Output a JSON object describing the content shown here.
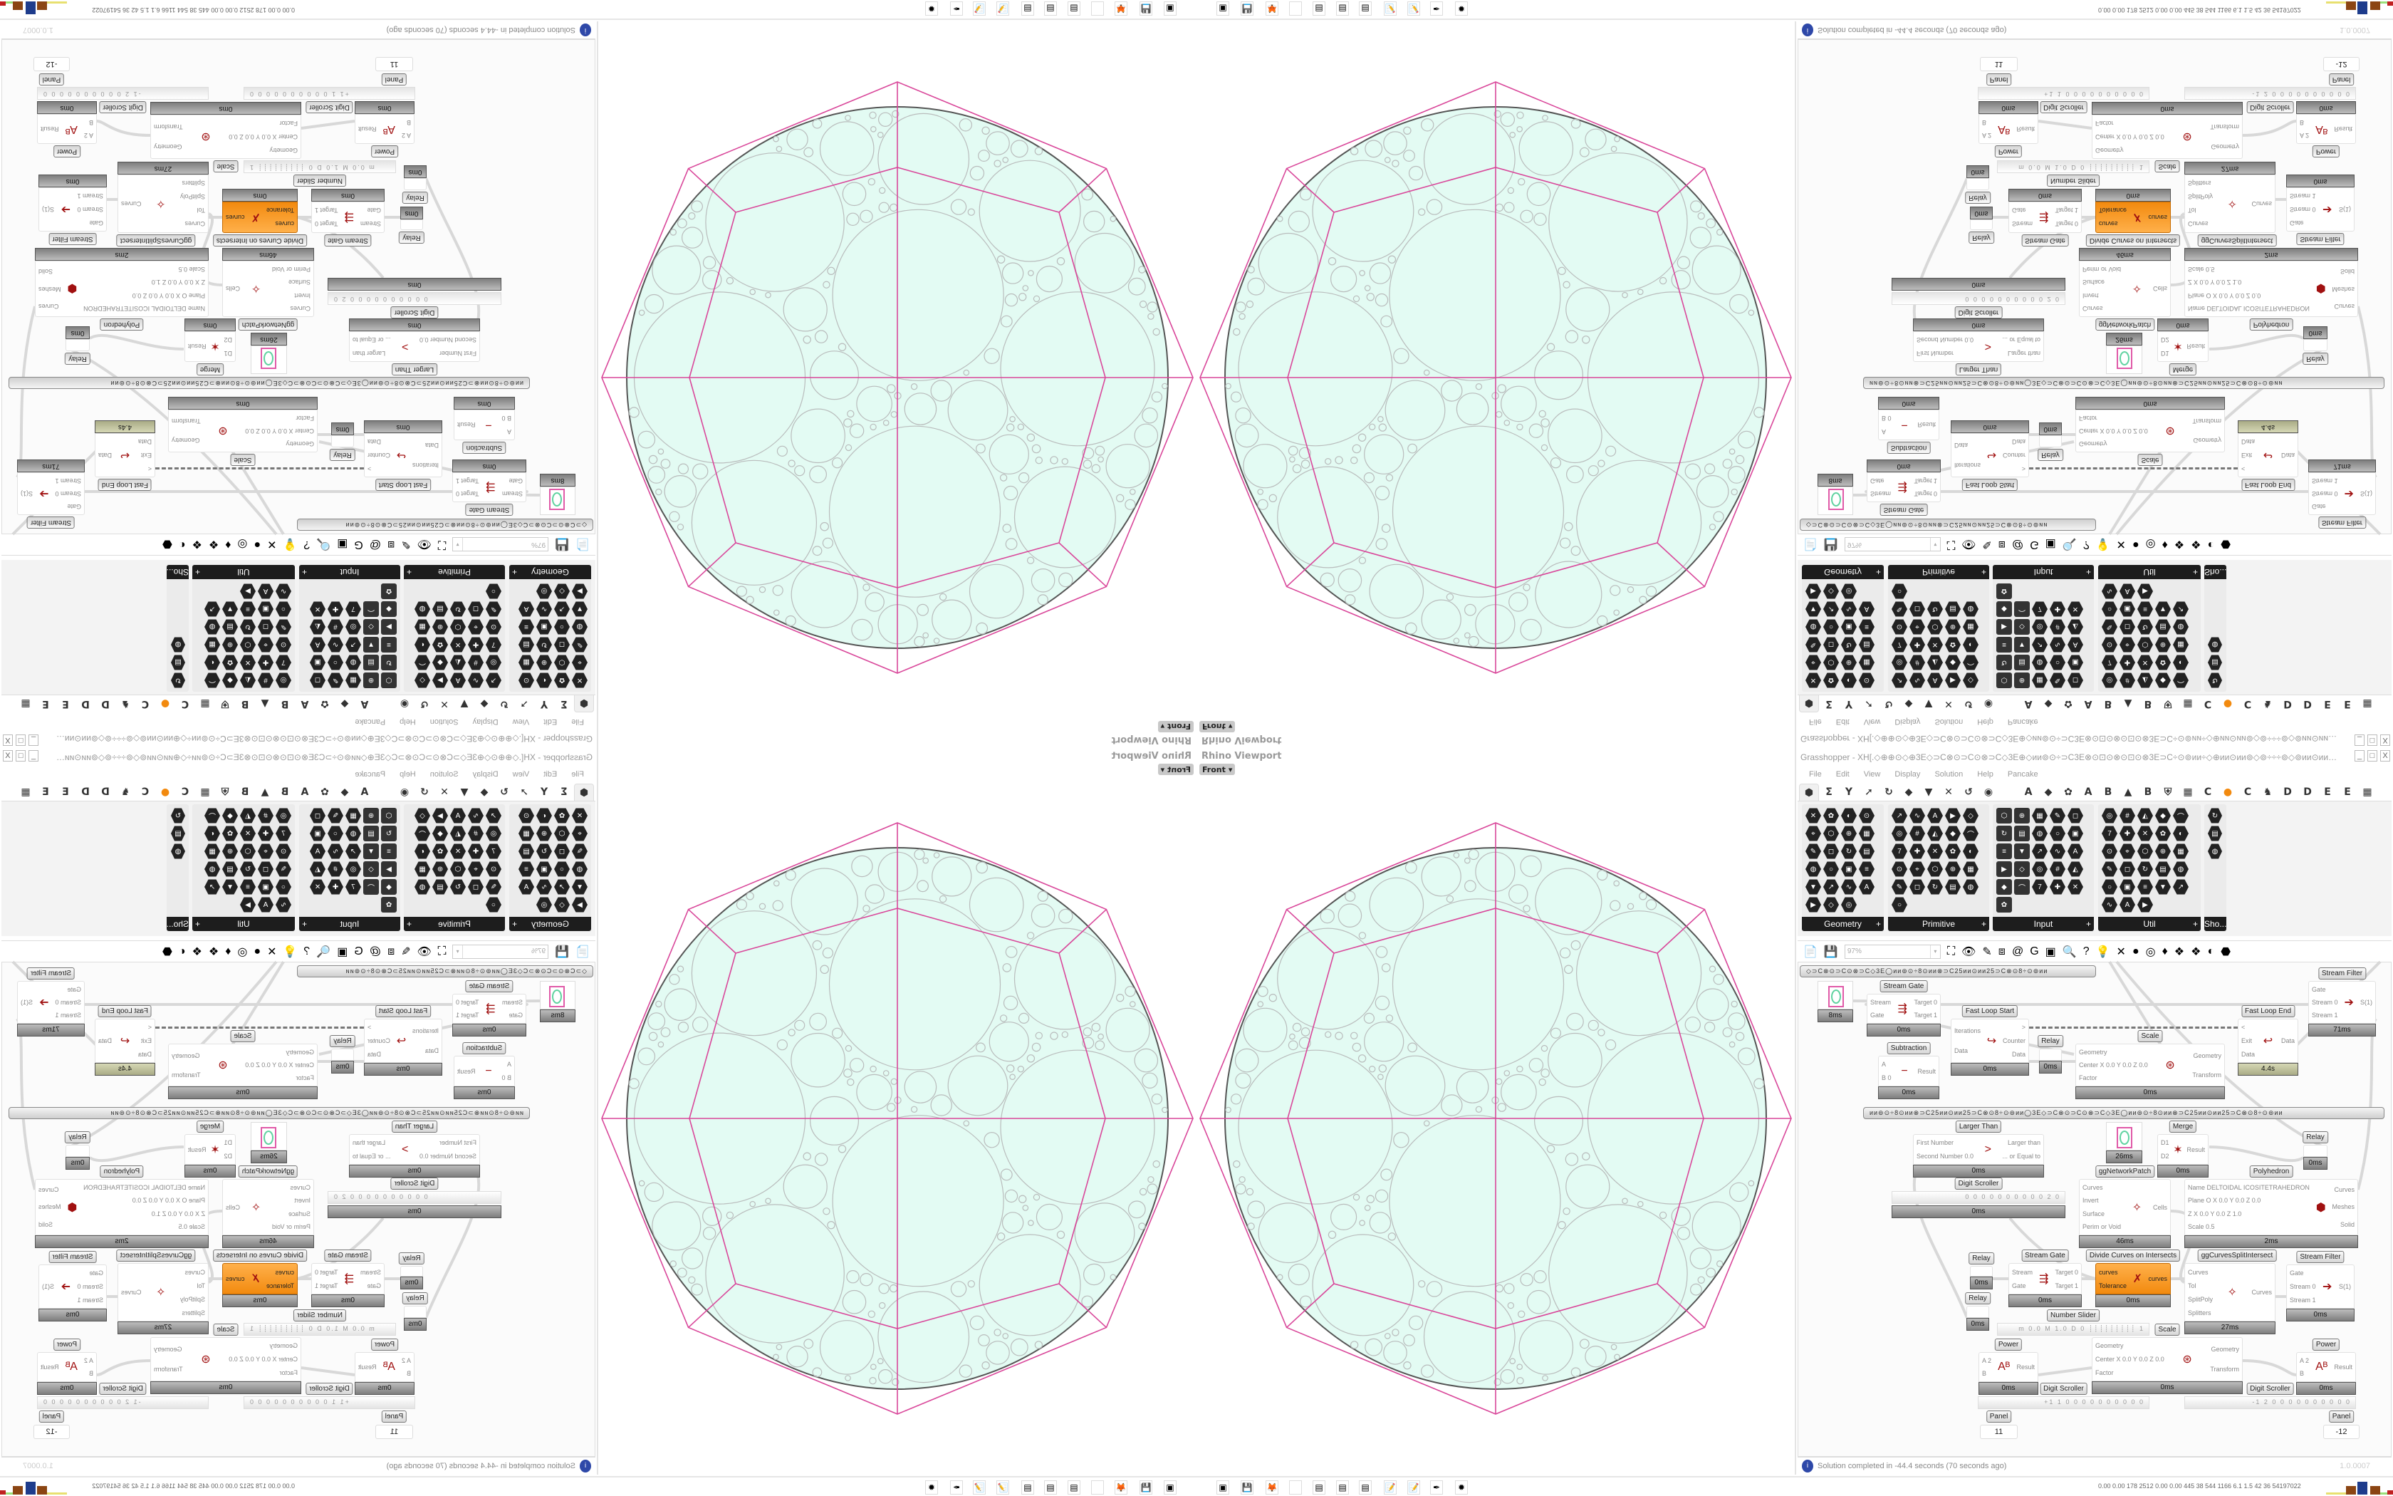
{
  "viewport": {
    "title": "Rhino Viewport",
    "view": "Front",
    "colors": {
      "fill": "#e3fbf3",
      "circle_stroke": "#b9bcbc",
      "outline": "#555555",
      "polygon_lines": "#d9479a"
    }
  },
  "window": {
    "title": "Grasshopper - XH[.◇⊕⊕⊙◇⊕3E◇⊃C⊗⊙⊃C⊙⊗⊃C◇3E⊕◇ᴎᴎ⊚⊙÷⊃C3E⊗⊙⊡⊙⊗⊙⊡⊙⊗3E⊃C÷⊙⊚ᴎᴎ÷◇⊕ᴎᴎ⊙ᴎᴎ⊚◇⊚÷÷÷⊚◇⊚ᴎᴎ⊙ᴎᴎ⊕◇ᴎᴎ⊚⊙÷⊃C3E⊗⊙⊡⊙⊗⊙⊡⊙…",
    "minimize": "_",
    "maximize": "□",
    "close": "X"
  },
  "menu": [
    "File",
    "Edit",
    "View",
    "Display",
    "Solution",
    "Help",
    "Pancake"
  ],
  "tabs": [
    "⬢",
    "Σ",
    "Y",
    "➚",
    "↻",
    "◆",
    "▼",
    "✕",
    "↺",
    "◉",
    "",
    "A",
    "◆",
    "✿",
    "A",
    "B",
    "▲",
    "B",
    "⛨",
    "▦",
    "C",
    "●",
    "C",
    "♞",
    "D",
    "D",
    "E",
    "E",
    "▦"
  ],
  "accent_orange": "#f28a0f",
  "palette": [
    {
      "title": "Geometry"
    },
    {
      "title": "Primitive"
    },
    {
      "title": "Input"
    },
    {
      "title": "Util"
    },
    {
      "title": "Sho..."
    }
  ],
  "toolbar": {
    "zoom": "97%",
    "icons": [
      "new-file",
      "save",
      "zoom-extents",
      "preview-eye",
      "sketch-pen",
      "bug",
      "at-sign",
      "gha",
      "canvas-image",
      "search-s",
      "package",
      "bulb",
      "cross-wires",
      "shaded-sphere",
      "wire-sphere",
      "red-gem",
      "teal-shape",
      "green-shape",
      "orange-sphere",
      "blue-sphere"
    ],
    "glyphs": [
      "📄",
      "💾",
      "⛶",
      "👁",
      "✎",
      "⧈",
      "@",
      "G",
      "▣",
      "🔍",
      "?",
      "💡",
      "✕",
      "●",
      "◎",
      "♦",
      "❖",
      "❖",
      "◐",
      "⬣"
    ]
  },
  "canvas": {
    "groups": [
      "◇⊃C⊗⊙⊃C⊙⊗⊃C◇3E◯ᴎᴎ⊚⊙÷8⊙ᴎᴎ⊗⊃C25ᴎᴎ⊙ᴎᴎ25⊃C⊗⊙8÷⊙⊚ᴎᴎ",
      "ᴎᴎ⊚⊙÷8⊙ᴎᴎ⊗⊃C25ᴎᴎ⊙ᴎᴎ25⊃C⊗⊙8÷⊙⊚ᴎᴎ◯3E◇⊃C⊗⊙⊃C⊙⊗⊃C◇3E◯ᴎᴎ⊚⊙÷8⊙ᴎᴎ⊗⊃C25ᴎᴎ⊙ᴎᴎ25⊃C⊗⊙8÷⊙⊚ᴎᴎ"
    ],
    "components": [
      {
        "title": "Stream Gate",
        "inputs": [
          "Stream",
          "Gate"
        ],
        "outputs": [
          "Target 0",
          "Target 1"
        ],
        "time": "0ms"
      },
      {
        "title": "Stream Filter",
        "inputs": [
          "Gate",
          "Stream 0",
          "Stream 1"
        ],
        "outputs": [
          "S(1)"
        ],
        "time": "71ms"
      },
      {
        "title": "Fast Loop Start",
        "inputs": [
          "Iterations",
          "Data"
        ],
        "outputs": [
          ">",
          "Counter",
          "Data"
        ],
        "time": "0ms"
      },
      {
        "title": "Relay",
        "inputs": [],
        "outputs": [],
        "time": "0ms"
      },
      {
        "title": "Scale",
        "inputs": [
          "Geometry",
          "Center X 0.0 Y 0.0 Z 0.0",
          "Factor"
        ],
        "outputs": [
          "Geometry",
          "Transform"
        ],
        "time": "0ms"
      },
      {
        "title": "Fast Loop End",
        "inputs": [
          "<",
          "Exit",
          "Data"
        ],
        "outputs": [
          "Data"
        ],
        "time": "4.4s"
      },
      {
        "title": "Subtraction",
        "inputs": [
          "A",
          "B 0"
        ],
        "outputs": [
          "Result"
        ],
        "time": "0ms"
      },
      {
        "title": "Larger Than",
        "inputs": [
          "First Number",
          "Second Number 0.0"
        ],
        "outputs": [
          "Larger than",
          "... or Equal to"
        ],
        "time": "0ms"
      },
      {
        "title": "Merge",
        "inputs": [
          "D1",
          "D2"
        ],
        "outputs": [
          "Result"
        ],
        "time": "0ms"
      },
      {
        "title": "Relay",
        "inputs": [],
        "outputs": [],
        "time": "0ms"
      },
      {
        "title": "ggNetworkPatch",
        "inputs": [
          "Curves",
          "Invert",
          "Surface",
          "Perim or Void"
        ],
        "outputs": [
          "Cells"
        ],
        "time": "46ms"
      },
      {
        "title": "Polyhedron",
        "inputs": [
          "Name DELTOIDAL ICOSITETRAHEDRON",
          "Plane O X 0.0 Y 0.0 Z 0.0",
          "Z X 0.0 Y 0.0 Z 1.0",
          "Scale 0.5"
        ],
        "outputs": [
          "Curves",
          "Meshes",
          "Solid"
        ],
        "time": "2ms"
      },
      {
        "title": "Relay",
        "inputs": [],
        "outputs": [],
        "time": "0ms"
      },
      {
        "title": "Stream Gate",
        "inputs": [
          "Stream",
          "Gate"
        ],
        "outputs": [
          "Target 0",
          "Target 1"
        ],
        "time": "0ms"
      },
      {
        "title": "Divide Curves on Intersects",
        "inputs": [
          "curves",
          "Tolerance"
        ],
        "outputs": [
          "curves"
        ],
        "time": "0ms"
      },
      {
        "title": "ggCurvesSplitIntersect",
        "inputs": [
          "Curves",
          "Tol",
          "SplitPoly",
          "Splitters"
        ],
        "outputs": [
          "Curves"
        ],
        "time": "27ms"
      },
      {
        "title": "Stream Filter",
        "inputs": [
          "Gate",
          "Stream 0",
          "Stream 1"
        ],
        "outputs": [
          "S(1)"
        ],
        "time": "0ms"
      },
      {
        "title": "Relay",
        "inputs": [],
        "outputs": [],
        "time": "0ms"
      },
      {
        "title": "Scale",
        "inputs": [
          "Geometry",
          "Center X 0.0 Y 0.0 Z 0.0",
          "Factor"
        ],
        "outputs": [
          "Geometry",
          "Transform"
        ],
        "time": "0ms"
      },
      {
        "title": "Power",
        "inputs": [
          "A 2",
          "B"
        ],
        "outputs": [
          "Result"
        ],
        "time": "0ms"
      },
      {
        "title": "Power",
        "inputs": [
          "A 2",
          "B"
        ],
        "outputs": [
          "Result"
        ],
        "time": "0ms"
      }
    ],
    "previews": [
      {
        "value": "1",
        "time": "8ms"
      },
      {
        "value": "1",
        "time": "26ms"
      }
    ],
    "sliders": [
      {
        "label": "Digit Scroller",
        "value": "0 0 0 0 0 0 0 0 0 0 2 0",
        "time": "0ms"
      },
      {
        "label": "Number Slider",
        "value": "m 0.0  M 1.0  D 0 ┊┊┊┊┊┊┊┊┊ 1"
      },
      {
        "label": "Digit Scroller",
        "value": "+1 1 0 0 0 0 0 0 0 0 0 0"
      },
      {
        "label": "Digit Scroller",
        "value": "-1 2 0 0 0 0 0 0 0 0 0 0"
      }
    ],
    "panels": [
      {
        "label": "Panel",
        "value": "11"
      },
      {
        "label": "Panel",
        "value": "-12"
      }
    ]
  },
  "status": {
    "message": "Solution completed in -44.4 seconds (70 seconds ago)",
    "version": "1.0.0007"
  },
  "taskbar": {
    "icons": [
      "terminal-app",
      "floppy-64",
      "firefox",
      "blank-app",
      "calculator",
      "calculator",
      "calculator",
      "notepad",
      "notepad",
      "inkscape",
      "red-app"
    ],
    "glyphs": [
      "▣",
      "💾",
      "🦊",
      "",
      "▤",
      "▤",
      "▤",
      "📝",
      "📝",
      "✒",
      "✹"
    ],
    "stats": "0.00 0.00 178 2512 0.00 0.00 445  38  544 1166 6.1  1.5  42  36  54197022"
  }
}
